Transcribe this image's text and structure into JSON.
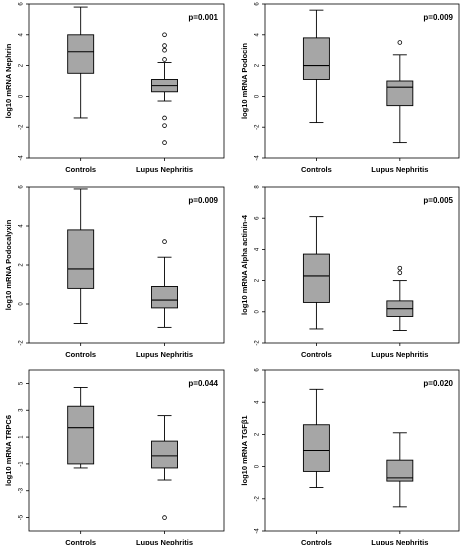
{
  "chart_data": [
    {
      "type": "box",
      "ylabel": "log10 mRNA Nephrin",
      "annotation": "p=0.001",
      "categories": [
        "Controls",
        "Lupus Nephritis"
      ],
      "ylim": [
        -4,
        6
      ],
      "yticks": [
        -4,
        -2,
        0,
        2,
        4,
        6
      ],
      "boxes": [
        {
          "min": -1.4,
          "q1": 1.5,
          "median": 2.9,
          "q3": 4.0,
          "max": 5.8,
          "outliers": []
        },
        {
          "min": -0.3,
          "q1": 0.3,
          "median": 0.7,
          "q3": 1.1,
          "max": 2.2,
          "outliers": [
            2.4,
            3.0,
            3.3,
            4.0,
            -1.4,
            -1.9,
            -3.0
          ]
        }
      ]
    },
    {
      "type": "box",
      "ylabel": "log10 mRNA Podocin",
      "annotation": "p=0.009",
      "categories": [
        "Controls",
        "Lupus Nephritis"
      ],
      "ylim": [
        -4,
        6
      ],
      "yticks": [
        -4,
        -2,
        0,
        2,
        4,
        6
      ],
      "boxes": [
        {
          "min": -1.7,
          "q1": 1.1,
          "median": 2.0,
          "q3": 3.8,
          "max": 5.6,
          "outliers": []
        },
        {
          "min": -3.0,
          "q1": -0.6,
          "median": 0.6,
          "q3": 1.0,
          "max": 2.7,
          "outliers": [
            3.5
          ]
        }
      ]
    },
    {
      "type": "box",
      "ylabel": "log10 mRNA Podocalyxin",
      "annotation": "p=0.009",
      "categories": [
        "Controls",
        "Lupus Nephritis"
      ],
      "ylim": [
        -2,
        6
      ],
      "yticks": [
        -2,
        0,
        2,
        4,
        6
      ],
      "boxes": [
        {
          "min": -1.0,
          "q1": 0.8,
          "median": 1.8,
          "q3": 3.8,
          "max": 5.9,
          "outliers": []
        },
        {
          "min": -1.2,
          "q1": -0.2,
          "median": 0.2,
          "q3": 0.9,
          "max": 2.4,
          "outliers": [
            3.2
          ]
        }
      ]
    },
    {
      "type": "box",
      "ylabel": "log10 mRNA Alpha actinin-4",
      "annotation": "p=0.005",
      "categories": [
        "Controls",
        "Lupus Nephritis"
      ],
      "ylim": [
        -2,
        8
      ],
      "yticks": [
        -2,
        0,
        2,
        4,
        6,
        8
      ],
      "boxes": [
        {
          "min": -1.1,
          "q1": 0.6,
          "median": 2.3,
          "q3": 3.7,
          "max": 6.1,
          "outliers": []
        },
        {
          "min": -1.2,
          "q1": -0.3,
          "median": 0.2,
          "q3": 0.7,
          "max": 2.0,
          "outliers": [
            2.5,
            2.8
          ]
        }
      ]
    },
    {
      "type": "box",
      "ylabel": "log10 mRNA TRPC6",
      "annotation": "p=0.044",
      "categories": [
        "Controls",
        "Lupus Nephritis"
      ],
      "ylim": [
        -6,
        6
      ],
      "yticks": [
        -5,
        -3,
        -1,
        1,
        3,
        5
      ],
      "boxes": [
        {
          "min": -1.3,
          "q1": -1.0,
          "median": 1.7,
          "q3": 3.3,
          "max": 4.7,
          "outliers": []
        },
        {
          "min": -2.2,
          "q1": -1.3,
          "median": -0.4,
          "q3": 0.7,
          "max": 2.6,
          "outliers": [
            -5.0
          ]
        }
      ]
    },
    {
      "type": "box",
      "ylabel": "log10 mRNA TGFβ1",
      "annotation": "p=0.020",
      "categories": [
        "Controls",
        "Lupus Nephritis"
      ],
      "ylim": [
        -4,
        6
      ],
      "yticks": [
        -4,
        -2,
        0,
        2,
        4,
        6
      ],
      "boxes": [
        {
          "min": -1.3,
          "q1": -0.3,
          "median": 1.0,
          "q3": 2.6,
          "max": 4.8,
          "outliers": []
        },
        {
          "min": -2.5,
          "q1": -0.9,
          "median": -0.7,
          "q3": 0.4,
          "max": 2.1,
          "outliers": []
        }
      ]
    }
  ]
}
